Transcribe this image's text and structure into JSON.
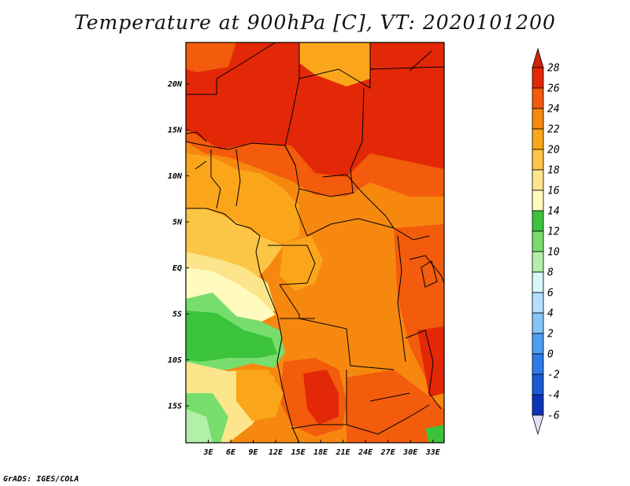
{
  "title": "Temperature at 900hPa [C], VT: 2020101200",
  "credit": "GrADS: IGES/COLA",
  "map": {
    "lon_range": [
      0,
      34.5
    ],
    "lat_range": [
      -19,
      24.5
    ],
    "lat_labels": [
      {
        "lat": 20,
        "text": "20N"
      },
      {
        "lat": 15,
        "text": "15N"
      },
      {
        "lat": 10,
        "text": "10N"
      },
      {
        "lat": 5,
        "text": "5N"
      },
      {
        "lat": 0,
        "text": "EQ"
      },
      {
        "lat": -5,
        "text": "5S"
      },
      {
        "lat": -10,
        "text": "10S"
      },
      {
        "lat": -15,
        "text": "15S"
      }
    ],
    "lon_labels": [
      {
        "lon": 3,
        "text": "3E"
      },
      {
        "lon": 6,
        "text": "6E"
      },
      {
        "lon": 9,
        "text": "9E"
      },
      {
        "lon": 12,
        "text": "12E"
      },
      {
        "lon": 15,
        "text": "15E"
      },
      {
        "lon": 18,
        "text": "18E"
      },
      {
        "lon": 21,
        "text": "21E"
      },
      {
        "lon": 24,
        "text": "24E"
      },
      {
        "lon": 27,
        "text": "27E"
      },
      {
        "lon": 30,
        "text": "30E"
      },
      {
        "lon": 33,
        "text": "33E"
      }
    ]
  },
  "colorbar": {
    "levels": [
      "28",
      "26",
      "24",
      "22",
      "20",
      "18",
      "16",
      "14",
      "12",
      "10",
      "8",
      "6",
      "4",
      "2",
      "0",
      "-2",
      "-4",
      "-6"
    ],
    "colors": [
      "#e32808",
      "#f25c0c",
      "#f7880f",
      "#fba61a",
      "#fdc545",
      "#fde58b",
      "#fffbbf",
      "#3bc43b",
      "#77dd6d",
      "#b2f0a9",
      "#d8f7f9",
      "#b3e0ff",
      "#85c6f7",
      "#4f9ef3",
      "#2e7ae6",
      "#1a5ad6",
      "#0d34b8",
      "#080a70"
    ],
    "top_color": "#d1230b",
    "bottom_color": "#e1e2f9"
  }
}
